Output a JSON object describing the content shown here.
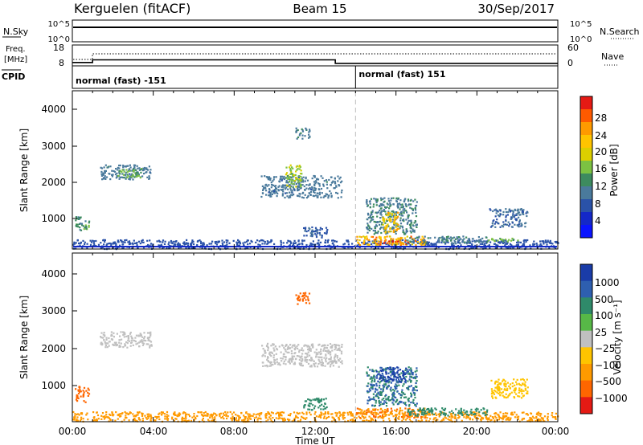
{
  "header": {
    "station": "Kerguelen (fitACF)",
    "beam": "Beam 15",
    "date": "30/Sep/2017"
  },
  "ticks_time": [
    "00:00",
    "04:00",
    "08:00",
    "12:00",
    "16:00",
    "20:00",
    "00:00"
  ],
  "xlabel": "Time UT",
  "top_panel": {
    "left_label": "N.Sky",
    "right_label": "N.Search",
    "left_ticks": [
      "10^5",
      "10^0"
    ],
    "right_ticks": [
      "10^5",
      "10^0"
    ]
  },
  "freq_panel": {
    "left_label_1": "Freq.",
    "left_label_2": "[MHz]",
    "right_label": "Nave",
    "left_ticks": [
      "18",
      "8"
    ],
    "right_ticks": [
      "60",
      "0"
    ]
  },
  "cpid_panel": {
    "label": "CPID",
    "mode_1": "normal (fast) -151",
    "mode_2": "normal (fast) 151"
  },
  "power_panel": {
    "ylabel": "Slant Range [km]",
    "y_ticks": [
      "4000",
      "3000",
      "2000",
      "1000"
    ],
    "cbar_label": "Power [dB]",
    "cbar_ticks": [
      "28",
      "24",
      "20",
      "16",
      "12",
      "8",
      "4"
    ],
    "cbar_colors": [
      "#e51a14",
      "#ff5a00",
      "#ff9a00",
      "#ffc400",
      "#dccf00",
      "#7cc242",
      "#3d8b5f",
      "#4a7a9c",
      "#2a52a8",
      "#1428c8",
      "#0a14ff"
    ]
  },
  "velocity_panel": {
    "ylabel": "Slant Range [km]",
    "y_ticks": [
      "4000",
      "3000",
      "2000",
      "1000"
    ],
    "cbar_label": "Velocity [m s⁻¹]",
    "cbar_ticks": [
      "1000",
      "500",
      "100",
      "25",
      "−25",
      "−100",
      "−500",
      "−1000"
    ],
    "cbar_colors": [
      "#1a3ca8",
      "#2e5fb0",
      "#2f8a6a",
      "#57b847",
      "#c0c0c0",
      "#ffc400",
      "#ff9a00",
      "#ff6600",
      "#e51a14"
    ]
  },
  "chart_data": {
    "type": "heatmap",
    "x_unit": "hours UT",
    "xlim": [
      0,
      24
    ],
    "ylim": [
      180,
      4500
    ],
    "y_unit": "km",
    "frequency_MHz": [
      {
        "start": 0,
        "end": 1.0,
        "value": 9.0
      },
      {
        "start": 1.0,
        "end": 13.0,
        "value": 10.5
      },
      {
        "start": 13.0,
        "end": 24,
        "value": 8.5
      }
    ],
    "cpid_change_hour": 14.0,
    "power_echo_regions": [
      {
        "t0": 0.0,
        "t1": 24.0,
        "r0": 200,
        "r1": 450,
        "power_dB": 6
      },
      {
        "t0": 0.1,
        "t1": 0.8,
        "r0": 700,
        "r1": 1100,
        "power_dB": 12
      },
      {
        "t0": 1.3,
        "t1": 3.9,
        "r0": 2100,
        "r1": 2500,
        "power_dB": 9
      },
      {
        "t0": 2.2,
        "t1": 3.4,
        "r0": 2150,
        "r1": 2400,
        "power_dB": 14
      },
      {
        "t0": 9.3,
        "t1": 13.3,
        "r0": 1600,
        "r1": 2200,
        "power_dB": 9
      },
      {
        "t0": 10.5,
        "t1": 11.3,
        "r0": 1900,
        "r1": 2500,
        "power_dB": 16
      },
      {
        "t0": 11.0,
        "t1": 11.7,
        "r0": 3200,
        "r1": 3500,
        "power_dB": 10
      },
      {
        "t0": 11.4,
        "t1": 12.6,
        "r0": 500,
        "r1": 800,
        "power_dB": 7
      },
      {
        "t0": 14.5,
        "t1": 17.0,
        "r0": 600,
        "r1": 1600,
        "power_dB": 10
      },
      {
        "t0": 15.3,
        "t1": 16.1,
        "r0": 650,
        "r1": 1200,
        "power_dB": 20
      },
      {
        "t0": 14.0,
        "t1": 17.5,
        "r0": 300,
        "r1": 550,
        "power_dB": 22
      },
      {
        "t0": 14.8,
        "t1": 16.6,
        "r0": 320,
        "r1": 420,
        "power_dB": 28
      },
      {
        "t0": 16.5,
        "t1": 20.5,
        "r0": 350,
        "r1": 550,
        "power_dB": 10
      },
      {
        "t0": 20.5,
        "t1": 22.0,
        "r0": 400,
        "r1": 500,
        "power_dB": 14
      },
      {
        "t0": 20.6,
        "t1": 22.5,
        "r0": 800,
        "r1": 1300,
        "power_dB": 8
      }
    ],
    "velocity_echo_regions": [
      {
        "t0": 0.0,
        "t1": 24.0,
        "r0": 200,
        "r1": 450,
        "velocity_ms": -100
      },
      {
        "t0": 0.1,
        "t1": 0.8,
        "r0": 700,
        "r1": 1100,
        "velocity_ms": -200
      },
      {
        "t0": 1.3,
        "t1": 3.9,
        "r0": 2100,
        "r1": 2500,
        "velocity_ms": 0
      },
      {
        "t0": 9.3,
        "t1": 13.3,
        "r0": 1600,
        "r1": 2200,
        "velocity_ms": 0
      },
      {
        "t0": 11.0,
        "t1": 11.7,
        "r0": 3200,
        "r1": 3500,
        "velocity_ms": -400
      },
      {
        "t0": 11.4,
        "t1": 12.6,
        "r0": 500,
        "r1": 800,
        "velocity_ms": 100
      },
      {
        "t0": 14.5,
        "t1": 17.0,
        "r0": 600,
        "r1": 1600,
        "velocity_ms": 300
      },
      {
        "t0": 15.0,
        "t1": 16.5,
        "r0": 1200,
        "r1": 1600,
        "velocity_ms": 800
      },
      {
        "t0": 14.0,
        "t1": 17.5,
        "r0": 300,
        "r1": 550,
        "velocity_ms": -150
      },
      {
        "t0": 16.5,
        "t1": 20.5,
        "r0": 350,
        "r1": 550,
        "velocity_ms": 150
      },
      {
        "t0": 20.6,
        "t1": 22.5,
        "r0": 800,
        "r1": 1300,
        "velocity_ms": -50
      }
    ]
  }
}
